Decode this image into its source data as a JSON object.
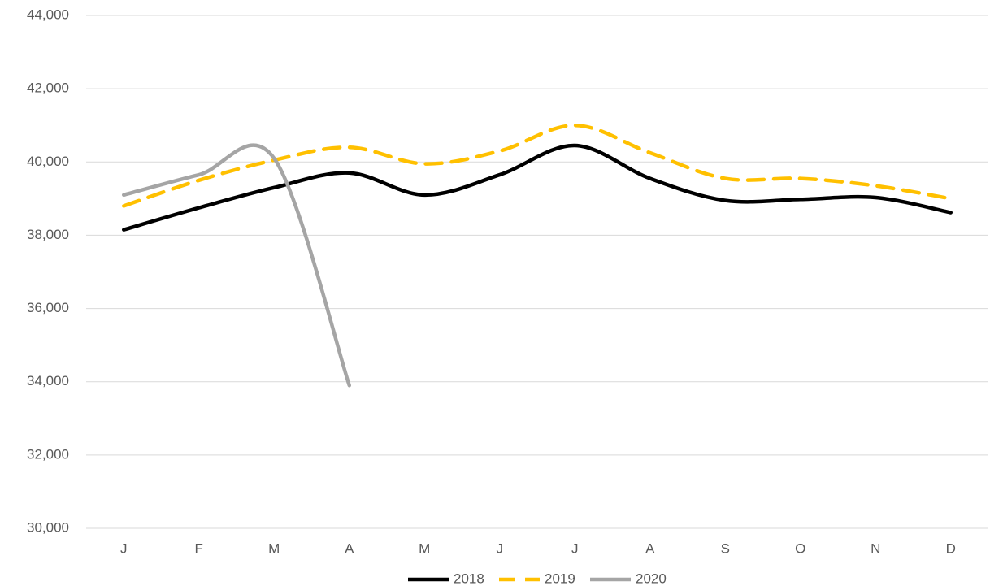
{
  "chart_data": {
    "type": "line",
    "categories": [
      "J",
      "F",
      "M",
      "A",
      "M",
      "J",
      "J",
      "A",
      "S",
      "O",
      "N",
      "D"
    ],
    "series": [
      {
        "name": "2018",
        "color": "#000000",
        "dash": false,
        "values": [
          38150,
          38750,
          39300,
          39700,
          39100,
          39650,
          40450,
          39550,
          38950,
          38980,
          39030,
          38620
        ]
      },
      {
        "name": "2019",
        "color": "#ffc000",
        "dash": true,
        "values": [
          38800,
          39500,
          40050,
          40400,
          39950,
          40300,
          41000,
          40250,
          39550,
          39550,
          39350,
          39000
        ]
      },
      {
        "name": "2020",
        "color": "#a5a5a5",
        "dash": false,
        "values": [
          39100,
          39650,
          40100,
          33900,
          null,
          null,
          null,
          null,
          null,
          null,
          null,
          null
        ]
      }
    ],
    "ylim": [
      30000,
      44000
    ],
    "yticks": [
      {
        "value": 30000,
        "label": "30,000"
      },
      {
        "value": 32000,
        "label": "32,000"
      },
      {
        "value": 34000,
        "label": "34,000"
      },
      {
        "value": 36000,
        "label": "36,000"
      },
      {
        "value": 38000,
        "label": "38,000"
      },
      {
        "value": 40000,
        "label": "40,000"
      },
      {
        "value": 42000,
        "label": "42,000"
      },
      {
        "value": 44000,
        "label": "44,000"
      }
    ],
    "grid": true,
    "smooth": true,
    "legend": "bottom"
  }
}
